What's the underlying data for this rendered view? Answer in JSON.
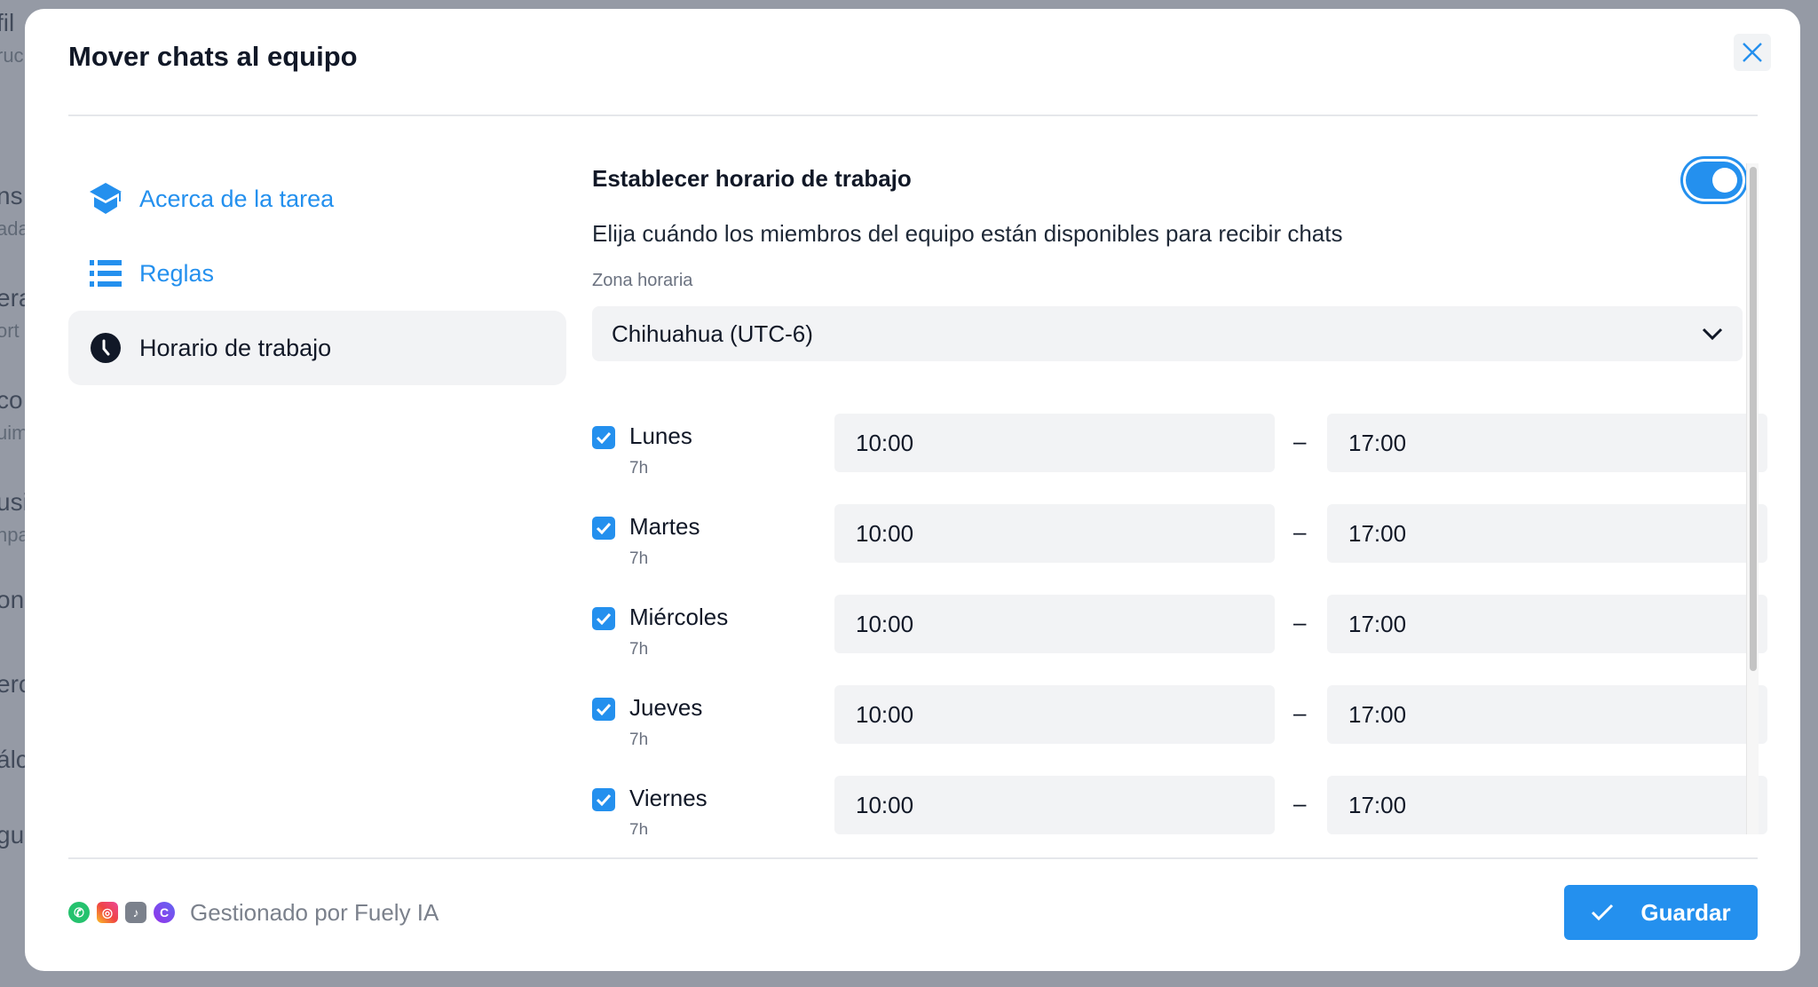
{
  "background": {
    "fragments": [
      "fil",
      "ruc",
      "ns",
      "ada",
      "era",
      "ort",
      "co",
      "uim",
      "usi",
      "npa",
      "onc",
      "erc",
      "álc",
      "gu"
    ]
  },
  "modal": {
    "title": "Mover chats al equipo",
    "close_icon": "close-icon"
  },
  "sidebar": {
    "items": [
      {
        "label": "Acerca de la tarea",
        "icon": "graduation-cap-icon",
        "active": false
      },
      {
        "label": "Reglas",
        "icon": "list-icon",
        "active": false
      },
      {
        "label": "Horario de trabajo",
        "icon": "clock-icon",
        "active": true
      }
    ]
  },
  "schedule": {
    "title": "Establecer horario de trabajo",
    "enabled": true,
    "subtitle": "Elija cuándo los miembros del equipo están disponibles para recibir chats",
    "timezone_label": "Zona horaria",
    "timezone_value": "Chihuahua (UTC-6)",
    "separator": "–",
    "days": [
      {
        "name": "Lunes",
        "hours": "7h",
        "checked": true,
        "start": "10:00",
        "end": "17:00"
      },
      {
        "name": "Martes",
        "hours": "7h",
        "checked": true,
        "start": "10:00",
        "end": "17:00"
      },
      {
        "name": "Miércoles",
        "hours": "7h",
        "checked": true,
        "start": "10:00",
        "end": "17:00"
      },
      {
        "name": "Jueves",
        "hours": "7h",
        "checked": true,
        "start": "10:00",
        "end": "17:00"
      },
      {
        "name": "Viernes",
        "hours": "7h",
        "checked": true,
        "start": "10:00",
        "end": "17:00"
      }
    ]
  },
  "footer": {
    "channels": [
      "whatsapp-icon",
      "instagram-icon",
      "tiktok-icon",
      "chat-c-icon"
    ],
    "managed_by": "Gestionado por Fuely IA",
    "save_label": "Guardar"
  },
  "colors": {
    "accent": "#2490ee",
    "overlay": "#959aa5"
  }
}
